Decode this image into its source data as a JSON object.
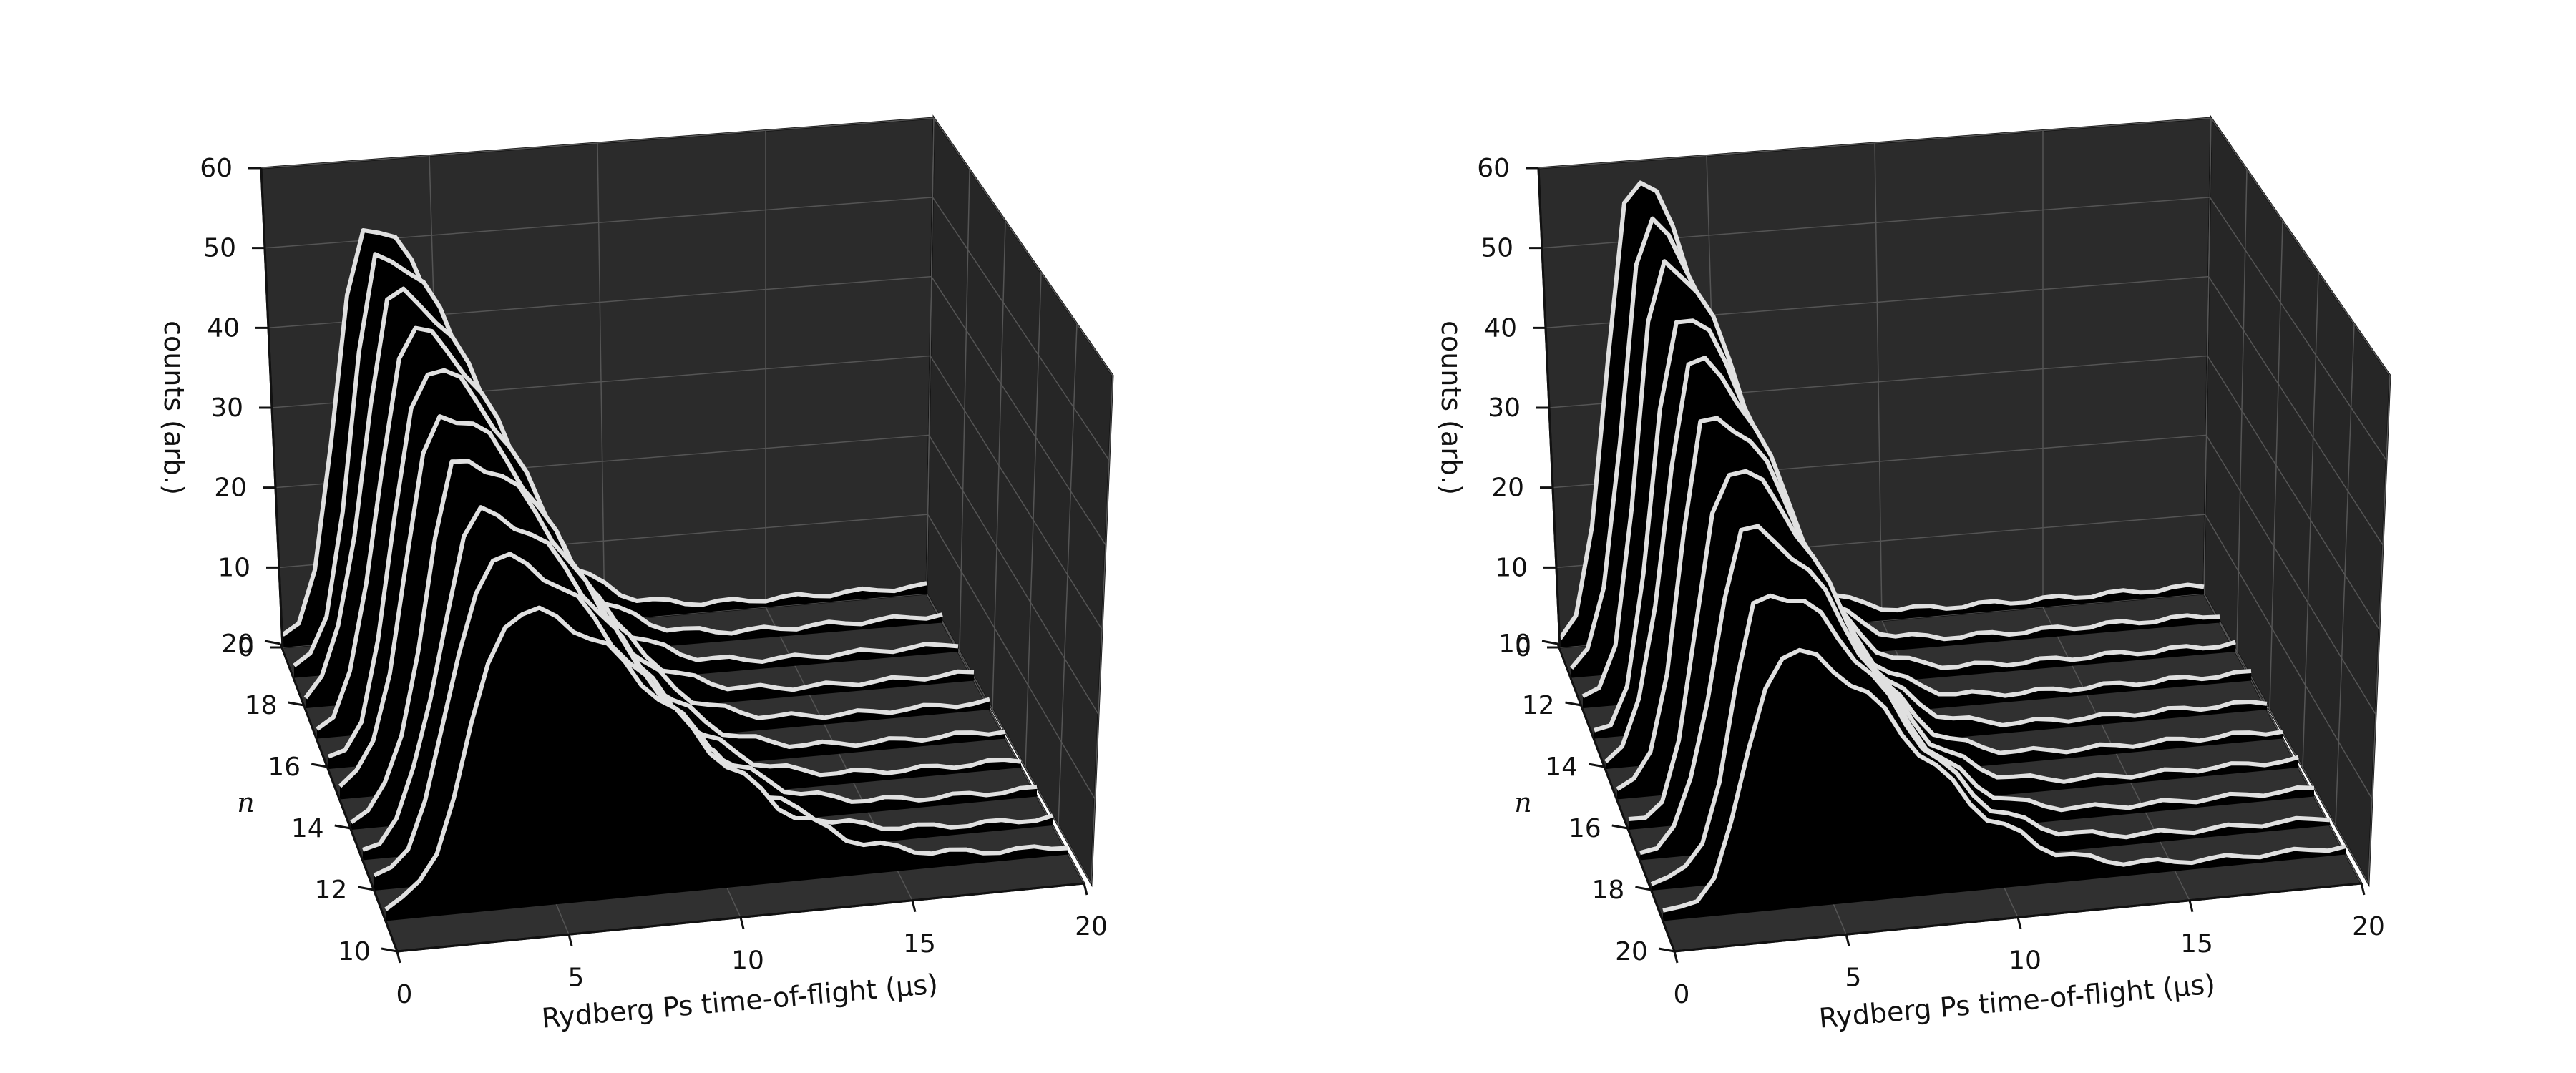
{
  "chart_data": [
    {
      "type": "line",
      "subtype": "3d-waterfall",
      "title": "",
      "xlabel": "Rydberg Ps time-of-flight (μs)",
      "ylabel": "n",
      "zlabel": "counts (arb.)",
      "xlim": [
        0,
        20
      ],
      "zlim": [
        0,
        60
      ],
      "x_ticks": [
        "0",
        "5",
        "10",
        "15",
        "20"
      ],
      "y_ticks": [
        "10",
        "12",
        "14",
        "16",
        "18",
        "20"
      ],
      "z_ticks": [
        "0",
        "10",
        "20",
        "30",
        "40",
        "50",
        "60"
      ],
      "line_color": "#e0e0e0",
      "fill_color": "#000000",
      "pane_color": "#2a2a2a",
      "series": [
        {
          "n": 11,
          "peak_x": 3.8,
          "peak": 37,
          "w_left": 1.3,
          "w_right": 4.6
        },
        {
          "n": 12,
          "peak_x": 3.5,
          "peak": 40,
          "w_left": 1.2,
          "w_right": 4.2
        },
        {
          "n": 13,
          "peak_x": 3.4,
          "peak": 42,
          "w_left": 1.1,
          "w_right": 4.0
        },
        {
          "n": 14,
          "peak_x": 3.2,
          "peak": 45,
          "w_left": 1.0,
          "w_right": 3.8
        },
        {
          "n": 15,
          "peak_x": 3.0,
          "peak": 47,
          "w_left": 1.0,
          "w_right": 3.7
        },
        {
          "n": 16,
          "peak_x": 2.9,
          "peak": 49,
          "w_left": 0.9,
          "w_right": 3.6
        },
        {
          "n": 17,
          "peak_x": 2.8,
          "peak": 50,
          "w_left": 0.9,
          "w_right": 3.5
        },
        {
          "n": 18,
          "peak_x": 2.7,
          "peak": 51,
          "w_left": 0.9,
          "w_right": 3.4
        },
        {
          "n": 19,
          "peak_x": 2.6,
          "peak": 52,
          "w_left": 0.8,
          "w_right": 3.3
        },
        {
          "n": 20,
          "peak_x": 2.5,
          "peak": 52,
          "w_left": 0.8,
          "w_right": 3.2
        }
      ]
    },
    {
      "type": "line",
      "subtype": "3d-waterfall",
      "title": "",
      "xlabel": "Rydberg Ps time-of-flight (μs)",
      "ylabel": "n",
      "zlabel": "counts (arb.)",
      "xlim": [
        0,
        20
      ],
      "zlim": [
        0,
        60
      ],
      "x_ticks": [
        "0",
        "5",
        "10",
        "15",
        "20"
      ],
      "y_ticks": [
        "10",
        "12",
        "14",
        "16",
        "18",
        "20"
      ],
      "z_ticks": [
        "0",
        "10",
        "20",
        "30",
        "40",
        "50",
        "60"
      ],
      "line_color": "#e0e0e0",
      "fill_color": "#000000",
      "pane_color": "#2a2a2a",
      "series": [
        {
          "n": 10,
          "peak_x": 2.2,
          "peak": 58,
          "w_left": 0.7,
          "w_right": 2.6
        },
        {
          "n": 11,
          "peak_x": 2.3,
          "peak": 56,
          "w_left": 0.7,
          "w_right": 2.7
        },
        {
          "n": 12,
          "peak_x": 2.4,
          "peak": 55,
          "w_left": 0.7,
          "w_right": 2.8
        },
        {
          "n": 13,
          "peak_x": 2.5,
          "peak": 52,
          "w_left": 0.7,
          "w_right": 2.9
        },
        {
          "n": 14,
          "peak_x": 2.6,
          "peak": 50,
          "w_left": 0.8,
          "w_right": 3.0
        },
        {
          "n": 15,
          "peak_x": 2.7,
          "peak": 47,
          "w_left": 0.8,
          "w_right": 3.1
        },
        {
          "n": 16,
          "peak_x": 2.9,
          "peak": 44,
          "w_left": 0.8,
          "w_right": 3.2
        },
        {
          "n": 17,
          "peak_x": 3.1,
          "peak": 40,
          "w_left": 0.9,
          "w_right": 3.3
        },
        {
          "n": 18,
          "peak_x": 3.3,
          "peak": 36,
          "w_left": 0.9,
          "w_right": 3.5
        },
        {
          "n": 19,
          "peak_x": 3.5,
          "peak": 32,
          "w_left": 1.0,
          "w_right": 3.7
        }
      ]
    }
  ]
}
